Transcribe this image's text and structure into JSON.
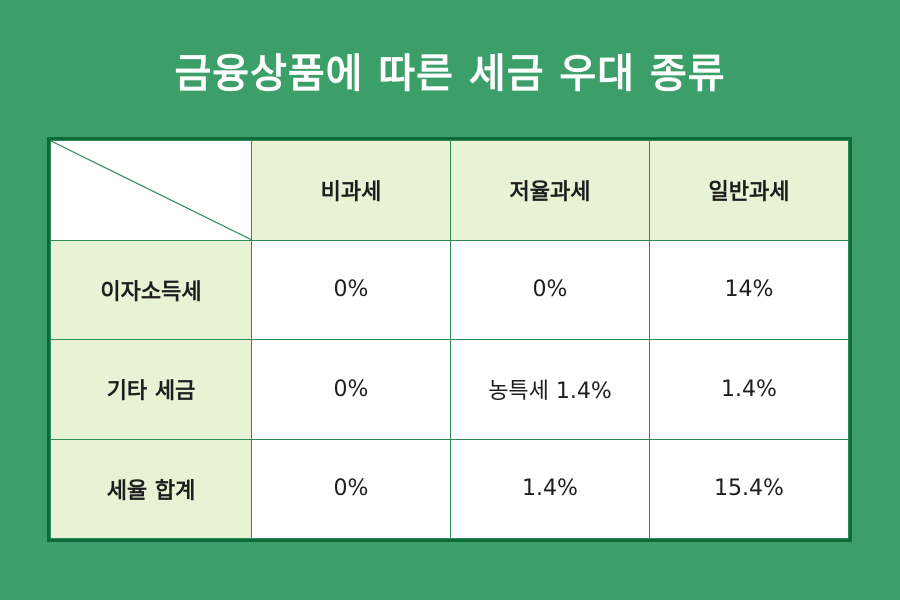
{
  "title": "금융상품에 따른 세금 우대 종류",
  "table": {
    "columns": [
      "비과세",
      "저율과세",
      "일반과세"
    ],
    "rows": [
      {
        "label": "이자소득세",
        "values": [
          "0%",
          "0%",
          "14%"
        ]
      },
      {
        "label": "기타 세금",
        "values": [
          "0%",
          "농특세 1.4%",
          "1.4%"
        ]
      },
      {
        "label": "세율 합계",
        "values": [
          "0%",
          "1.4%",
          "15.4%"
        ]
      }
    ]
  },
  "colors": {
    "background": "#3c9e68",
    "header_fill": "#e8f3d6",
    "border": "#0d6b3a"
  }
}
